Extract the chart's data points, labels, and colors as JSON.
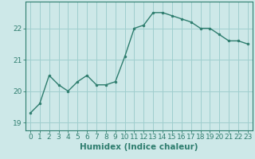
{
  "x": [
    0,
    1,
    2,
    3,
    4,
    5,
    6,
    7,
    8,
    9,
    10,
    11,
    12,
    13,
    14,
    15,
    16,
    17,
    18,
    19,
    20,
    21,
    22,
    23
  ],
  "y": [
    19.3,
    19.6,
    20.5,
    20.2,
    20.0,
    20.3,
    20.5,
    20.2,
    20.2,
    20.3,
    21.1,
    22.0,
    22.1,
    22.5,
    22.5,
    22.4,
    22.3,
    22.2,
    22.0,
    22.0,
    21.8,
    21.6,
    21.6,
    21.5
  ],
  "line_color": "#2e7d6e",
  "marker": "o",
  "marker_size": 2,
  "linewidth": 1.0,
  "bg_color": "#cde8e8",
  "grid_color": "#9fcece",
  "xlabel": "Humidex (Indice chaleur)",
  "xlim": [
    -0.5,
    23.5
  ],
  "ylim": [
    18.75,
    22.85
  ],
  "yticks": [
    19,
    20,
    21,
    22
  ],
  "xticks": [
    0,
    1,
    2,
    3,
    4,
    5,
    6,
    7,
    8,
    9,
    10,
    11,
    12,
    13,
    14,
    15,
    16,
    17,
    18,
    19,
    20,
    21,
    22,
    23
  ],
  "tick_fontsize": 6.5,
  "xlabel_fontsize": 7.5
}
